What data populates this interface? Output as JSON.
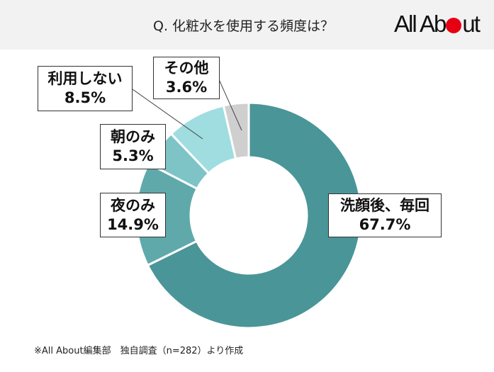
{
  "header": {
    "title": "Q. 化粧水を使用する頻度は？",
    "logo": {
      "text_before": "All Ab",
      "text_after": "ut",
      "dot_color": "#e60012"
    }
  },
  "chart_data": {
    "type": "pie",
    "variant": "donut",
    "title": "Q. 化粧水を使用する頻度は？",
    "categories": [
      "洗顔後、毎回",
      "夜のみ",
      "朝のみ",
      "利用しない",
      "その他"
    ],
    "values": [
      67.7,
      14.9,
      5.3,
      8.5,
      3.6
    ],
    "unit": "%",
    "colors": [
      "#4a9598",
      "#5fa9ab",
      "#7ec4c6",
      "#9fdde0",
      "#cfcfcf"
    ],
    "start_angle": "12 o'clock, clockwise",
    "sample_size": 282
  },
  "labels": [
    {
      "name": "洗顔後、毎回",
      "value": "67.7%"
    },
    {
      "name": "夜のみ",
      "value": "14.9%"
    },
    {
      "name": "朝のみ",
      "value": "5.3%"
    },
    {
      "name": "利用しない",
      "value": "8.5%"
    },
    {
      "name": "その他",
      "value": "3.6%"
    }
  ],
  "footnote": "※All About編集部　独自調査（n=282）より作成"
}
